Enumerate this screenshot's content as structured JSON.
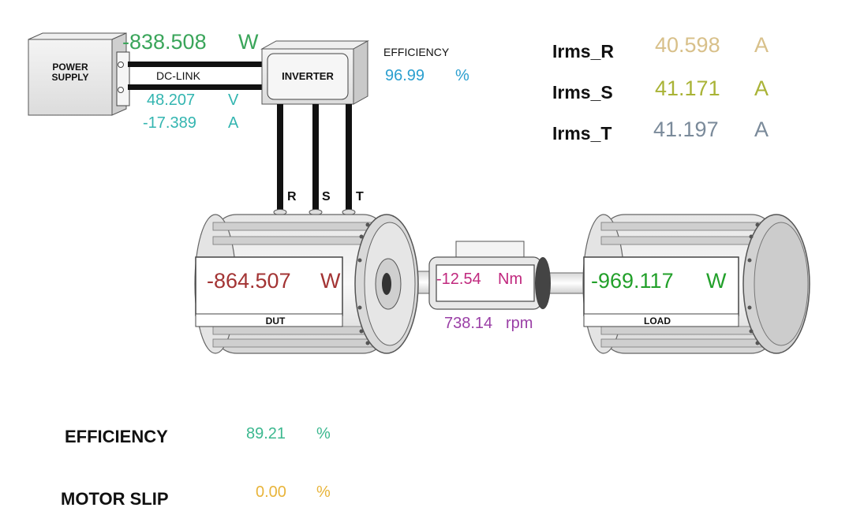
{
  "power_supply": {
    "label_line1": "POWER",
    "label_line2": "SUPPLY"
  },
  "inverter": {
    "label": "INVERTER"
  },
  "dc_link": {
    "label": "DC-LINK",
    "power_value": "-838.508",
    "power_unit": "W",
    "voltage_value": "48.207",
    "voltage_unit": "V",
    "current_value": "-17.389",
    "current_unit": "A"
  },
  "inverter_efficiency": {
    "label": "EFFICIENCY",
    "value": "96.99",
    "unit": "%"
  },
  "phases": {
    "r": "R",
    "s": "S",
    "t": "T"
  },
  "irms": [
    {
      "label": "Irms_R",
      "value": "40.598",
      "unit": "A"
    },
    {
      "label": "Irms_S",
      "value": "41.171",
      "unit": "A"
    },
    {
      "label": "Irms_T",
      "value": "41.197",
      "unit": "A"
    }
  ],
  "dut": {
    "label": "DUT",
    "power_value": "-864.507",
    "power_unit": "W"
  },
  "torque_sensor": {
    "torque_value": "-12.54",
    "torque_unit": "Nm",
    "speed_value": "738.14",
    "speed_unit": "rpm"
  },
  "load": {
    "label": "LOAD",
    "power_value": "-969.117",
    "power_unit": "W"
  },
  "summary": {
    "efficiency": {
      "label": "EFFICIENCY",
      "value": "89.21",
      "unit": "%"
    },
    "motor_slip": {
      "label": "MOTOR SLIP",
      "value": "0.00",
      "unit": "%"
    }
  },
  "colors": {
    "dc_power": "#3aa55a",
    "dc_meas": "#33b5b0",
    "inv_eff": "#2b9fcf",
    "irms_r": "#d8c08a",
    "irms_s": "#a9b336",
    "irms_t": "#7a8a9a",
    "dut_power": "#a33434",
    "torque": "#c0287e",
    "speed": "#9a3fa6",
    "load_power": "#22a02a",
    "eff": "#3cb88f",
    "slip": "#e8b43a"
  }
}
